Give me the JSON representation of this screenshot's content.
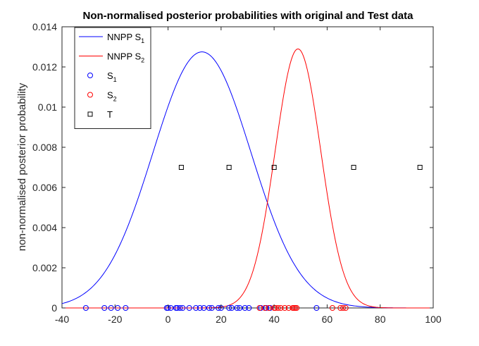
{
  "chart_data": {
    "type": "line",
    "title": "Non-normalised posterior probabilities with original and Test data",
    "xlabel": "",
    "ylabel": "non-normalised posterior probability",
    "xlim": [
      -40,
      100
    ],
    "ylim": [
      0,
      0.014
    ],
    "xticks": [
      -40,
      -20,
      0,
      20,
      40,
      60,
      80,
      100
    ],
    "xtick_labels": [
      "-40",
      "-20",
      "0",
      "20",
      "40",
      "60",
      "80",
      "100"
    ],
    "yticks": [
      0,
      0.002,
      0.004,
      0.006,
      0.008,
      0.01,
      0.012,
      0.014
    ],
    "ytick_labels": [
      "0",
      "0.002",
      "0.004",
      "0.006",
      "0.008",
      "0.01",
      "0.012",
      "0.014"
    ],
    "grid": false,
    "legend_position": "top-left",
    "series": [
      {
        "name": "NNPP S1",
        "legend_main": "NNPP S",
        "legend_sub": "1",
        "kind": "curve",
        "color": "#0000ff",
        "peak_x": 12.8,
        "peak_y": 0.01275,
        "sd": 18.5
      },
      {
        "name": "NNPP S2",
        "legend_main": "NNPP S",
        "legend_sub": "2",
        "kind": "curve",
        "color": "#ff0000",
        "peak_x": 49,
        "peak_y": 0.0129,
        "sd": 8.6
      },
      {
        "name": "S1",
        "legend_main": "S",
        "legend_sub": "1",
        "kind": "circle",
        "color": "#0000ff",
        "y": 0,
        "x": [
          -31,
          -24,
          -21.5,
          -19,
          -16,
          -0.5,
          0,
          1,
          3,
          3.5,
          4.5,
          5.5,
          8,
          10.5,
          12,
          13.5,
          15.5,
          16.5,
          19,
          20,
          23,
          24,
          26,
          27,
          29,
          30.5,
          35,
          37,
          38.5,
          56
        ]
      },
      {
        "name": "S2",
        "legend_main": "S",
        "legend_sub": "2",
        "kind": "circle",
        "color": "#ff0000",
        "y": 0,
        "x": [
          34.5,
          36.5,
          38,
          40,
          40.5,
          41.5,
          42.5,
          44,
          45.5,
          47,
          47.5,
          48,
          48.5,
          62,
          65,
          66,
          67
        ]
      },
      {
        "name": "T",
        "legend_main": "T",
        "legend_sub": "",
        "kind": "square",
        "color": "#000000",
        "y": 0.007,
        "x": [
          5,
          23,
          40,
          70,
          95
        ]
      }
    ]
  }
}
